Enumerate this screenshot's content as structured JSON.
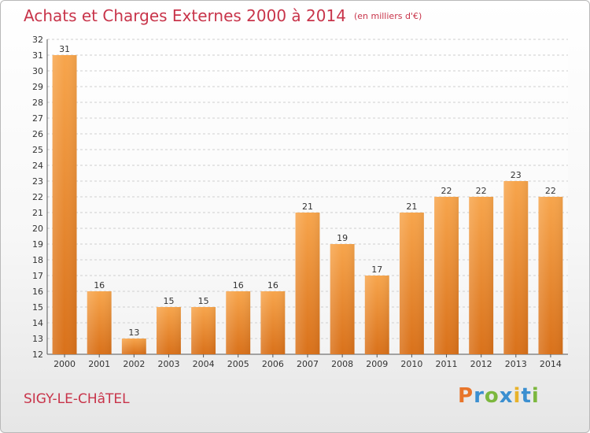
{
  "title": "Achats et Charges Externes 2000 à 2014",
  "subtitle": "(en milliers d'€)",
  "town": "SIGY-LE-CHâTEL",
  "logo": {
    "letters": [
      "P",
      "r",
      "o",
      "x",
      "i",
      "t",
      "i"
    ],
    "colors": [
      "#e8752a",
      "#3b8fd0",
      "#7cb73e",
      "#3b8fd0",
      "#e8b22a",
      "#3b8fd0",
      "#7cb73e"
    ]
  },
  "colors": {
    "bar": "#f1963a",
    "title": "#c8344a"
  },
  "chart_data": {
    "type": "bar",
    "categories": [
      "2000",
      "2001",
      "2002",
      "2003",
      "2004",
      "2005",
      "2006",
      "2007",
      "2008",
      "2009",
      "2010",
      "2011",
      "2012",
      "2013",
      "2014"
    ],
    "values": [
      31,
      16,
      13,
      15,
      15,
      16,
      16,
      21,
      19,
      17,
      21,
      22,
      22,
      23,
      22
    ],
    "ylim": [
      12,
      32
    ],
    "yticks": [
      12,
      13,
      14,
      15,
      16,
      17,
      18,
      19,
      20,
      21,
      22,
      23,
      24,
      25,
      26,
      27,
      28,
      29,
      30,
      31,
      32
    ],
    "grid": true,
    "xlabel": "",
    "ylabel": ""
  }
}
